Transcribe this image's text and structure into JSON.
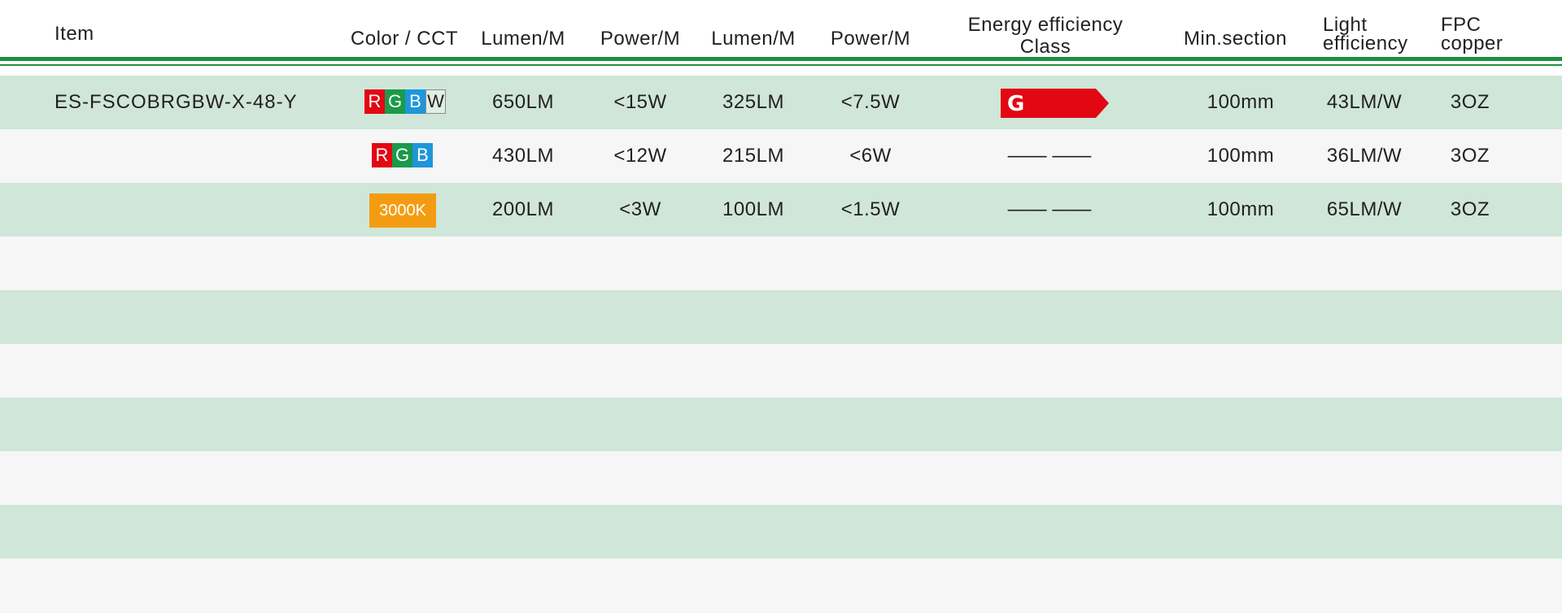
{
  "headers": {
    "item": "Item",
    "color_cct": "Color / CCT",
    "lumen_m_1": "Lumen/M",
    "power_m_1": "Power/M",
    "lumen_m_2": "Lumen/M",
    "power_m_2": "Power/M",
    "energy_line1": "Energy efficiency",
    "energy_line2": "Class",
    "min_section": "Min.section",
    "light_eff_line1": "Light",
    "light_eff_line2": "efficiency",
    "fpc_line1": "FPC",
    "fpc_line2": "copper"
  },
  "rows": [
    {
      "item": "ES-FSCOBRGBW-X-48-Y",
      "swatches": [
        "R",
        "G",
        "B",
        "W"
      ],
      "lumen1": "650LM",
      "power1": "<15W",
      "lumen2": "325LM",
      "power2": "<7.5W",
      "energy": "G",
      "min_section": "100mm",
      "light_eff": "43LM/W",
      "fpc": "3OZ"
    },
    {
      "item": "",
      "swatches": [
        "R",
        "G",
        "B"
      ],
      "lumen1": "430LM",
      "power1": "<12W",
      "lumen2": "215LM",
      "power2": "<6W",
      "energy": "—— ——",
      "min_section": "100mm",
      "light_eff": "36LM/W",
      "fpc": "3OZ"
    },
    {
      "item": "",
      "cct": "3000K",
      "lumen1": "200LM",
      "power1": "<3W",
      "lumen2": "100LM",
      "power2": "<1.5W",
      "energy": "—— ——",
      "min_section": "100mm",
      "light_eff": "65LM/W",
      "fpc": "3OZ"
    }
  ],
  "colors": {
    "rule_green": "#1e8f3e",
    "row_green": "#cfe6d9",
    "row_light": "#f6f6f6",
    "swatch_red": "#e30613",
    "swatch_green": "#1a9a4a",
    "swatch_blue": "#1e96d9",
    "cct_orange": "#f39c12",
    "energy_red": "#e30613"
  }
}
